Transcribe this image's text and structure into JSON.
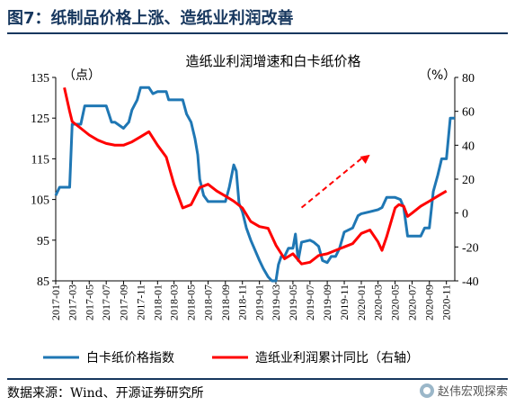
{
  "figure": {
    "title": "图7：纸制品价格上涨、造纸业利润改善",
    "source": "数据来源：Wind、开源证券研究所",
    "watermark": "赵伟宏观探索"
  },
  "chart_data": {
    "type": "line",
    "title": "造纸业利润增速和白卡纸价格",
    "y_left_label": "（点）",
    "y_right_label": "（%）",
    "y_left_range": [
      85,
      135
    ],
    "y_right_range": [
      -40,
      80
    ],
    "y_left_ticks": [
      "135",
      "125",
      "115",
      "105",
      "95",
      "85"
    ],
    "y_right_ticks": [
      "80",
      "60",
      "40",
      "20",
      "0",
      "-20",
      "-40"
    ],
    "x_range": [
      "2017-01",
      "2020-12"
    ],
    "x_ticks": [
      "2017-01",
      "2017-03",
      "2017-05",
      "2017-07",
      "2017-09",
      "2017-11",
      "2018-01",
      "2018-03",
      "2018-05",
      "2018-07",
      "2018-09",
      "2018-11",
      "2019-01",
      "2019-03",
      "2019-05",
      "2019-07",
      "2019-09",
      "2019-11",
      "2020-01",
      "2020-03",
      "2020-05",
      "2020-07",
      "2020-09",
      "2020-11"
    ],
    "series": [
      {
        "name": "白卡纸价格指数",
        "axis": "left",
        "color": "#1f77b4",
        "points": [
          [
            "2017-01",
            106
          ],
          [
            "2017-01-15",
            108
          ],
          [
            "2017-02",
            108
          ],
          [
            "2017-02-20",
            108
          ],
          [
            "2017-03",
            123.5
          ],
          [
            "2017-04",
            123.5
          ],
          [
            "2017-04-15",
            128
          ],
          [
            "2017-05",
            128
          ],
          [
            "2017-06",
            128
          ],
          [
            "2017-07",
            128
          ],
          [
            "2017-07-20",
            124
          ],
          [
            "2017-08",
            124
          ],
          [
            "2017-09",
            122.5
          ],
          [
            "2017-09-20",
            124
          ],
          [
            "2017-10",
            127
          ],
          [
            "2017-10-20",
            129.5
          ],
          [
            "2017-11",
            132.5
          ],
          [
            "2017-12",
            132.5
          ],
          [
            "2017-12-15",
            131
          ],
          [
            "2018-01",
            131.5
          ],
          [
            "2018-02",
            131.5
          ],
          [
            "2018-02-10",
            129.5
          ],
          [
            "2018-03",
            129.5
          ],
          [
            "2018-04",
            129.5
          ],
          [
            "2018-04-15",
            126
          ],
          [
            "2018-05",
            124
          ],
          [
            "2018-05-15",
            120
          ],
          [
            "2018-05-25",
            116
          ],
          [
            "2018-06",
            110
          ],
          [
            "2018-06-15",
            106
          ],
          [
            "2018-07",
            104.5
          ],
          [
            "2018-08",
            104.5
          ],
          [
            "2018-09",
            104.5
          ],
          [
            "2018-09-15",
            108
          ],
          [
            "2018-10",
            113.5
          ],
          [
            "2018-10-10",
            112
          ],
          [
            "2018-10-20",
            104
          ],
          [
            "2018-11",
            102
          ],
          [
            "2018-11-15",
            98
          ],
          [
            "2018-12",
            95
          ],
          [
            "2019-01",
            90
          ],
          [
            "2019-01-15",
            88
          ],
          [
            "2019-02",
            86
          ],
          [
            "2019-02-15",
            85
          ],
          [
            "2019-03",
            85
          ],
          [
            "2019-03-10",
            89
          ],
          [
            "2019-03-20",
            91
          ],
          [
            "2019-04",
            91
          ],
          [
            "2019-04-15",
            93
          ],
          [
            "2019-05",
            93
          ],
          [
            "2019-05-10",
            96.5
          ],
          [
            "2019-05-20",
            90
          ],
          [
            "2019-06",
            94.5
          ],
          [
            "2019-07",
            95
          ],
          [
            "2019-07-15",
            94.5
          ],
          [
            "2019-08",
            93.5
          ],
          [
            "2019-08-15",
            90
          ],
          [
            "2019-09",
            89.5
          ],
          [
            "2019-09-15",
            91
          ],
          [
            "2019-10",
            91
          ],
          [
            "2019-10-15",
            93
          ],
          [
            "2019-11",
            97
          ],
          [
            "2019-12",
            98
          ],
          [
            "2019-12-20",
            101
          ],
          [
            "2020-01",
            101.5
          ],
          [
            "2020-02",
            102
          ],
          [
            "2020-03",
            102.5
          ],
          [
            "2020-03-15",
            103
          ],
          [
            "2020-04",
            105.5
          ],
          [
            "2020-05",
            105.5
          ],
          [
            "2020-05-20",
            105
          ],
          [
            "2020-06",
            103
          ],
          [
            "2020-06-15",
            96
          ],
          [
            "2020-07",
            96
          ],
          [
            "2020-08",
            96
          ],
          [
            "2020-08-15",
            98
          ],
          [
            "2020-09",
            98
          ],
          [
            "2020-09-15",
            107
          ],
          [
            "2020-10",
            111
          ],
          [
            "2020-10-15",
            115
          ],
          [
            "2020-11",
            115
          ],
          [
            "2020-11-15",
            125
          ],
          [
            "2020-12",
            125
          ]
        ]
      },
      {
        "name": "造纸业利润累计同比（右轴）",
        "axis": "right",
        "color": "#ff0000",
        "points": [
          [
            "2017-02",
            74
          ],
          [
            "2017-02-20",
            60
          ],
          [
            "2017-03",
            54
          ],
          [
            "2017-04",
            50
          ],
          [
            "2017-05",
            46
          ],
          [
            "2017-06",
            43
          ],
          [
            "2017-07",
            41
          ],
          [
            "2017-08",
            40
          ],
          [
            "2017-09",
            40
          ],
          [
            "2017-10",
            42
          ],
          [
            "2017-11",
            45
          ],
          [
            "2017-12",
            48
          ],
          [
            "2018-01",
            40
          ],
          [
            "2018-02",
            33
          ],
          [
            "2018-03",
            17
          ],
          [
            "2018-04",
            3
          ],
          [
            "2018-05",
            5
          ],
          [
            "2018-06",
            15
          ],
          [
            "2018-07",
            17
          ],
          [
            "2018-08",
            13
          ],
          [
            "2018-09",
            10
          ],
          [
            "2018-10",
            7
          ],
          [
            "2018-11",
            3
          ],
          [
            "2018-12",
            -5
          ],
          [
            "2019-01",
            -8
          ],
          [
            "2019-02",
            -9
          ],
          [
            "2019-03",
            -19
          ],
          [
            "2019-04",
            -27
          ],
          [
            "2019-05",
            -24
          ],
          [
            "2019-06",
            -30
          ],
          [
            "2019-07",
            -29
          ],
          [
            "2019-08",
            -25
          ],
          [
            "2019-09",
            -24
          ],
          [
            "2019-10",
            -22
          ],
          [
            "2019-11",
            -20
          ],
          [
            "2019-12",
            -18
          ],
          [
            "2020-01",
            -12
          ],
          [
            "2020-02",
            -10
          ],
          [
            "2020-03",
            -17
          ],
          [
            "2020-03-15",
            -22
          ],
          [
            "2020-04",
            -14
          ],
          [
            "2020-05",
            3
          ],
          [
            "2020-05-15",
            5
          ],
          [
            "2020-06",
            4
          ],
          [
            "2020-06-15",
            -2
          ],
          [
            "2020-07",
            0
          ],
          [
            "2020-08",
            4
          ],
          [
            "2020-09",
            7
          ],
          [
            "2020-10",
            10
          ],
          [
            "2020-11",
            13
          ]
        ]
      }
    ],
    "trend_arrow": {
      "style": "dashed",
      "color": "#ff0000",
      "from": [
        "2019-06",
        103
      ],
      "to": [
        "2020-02",
        116
      ],
      "axis": "left"
    },
    "legend_position": "bottom",
    "grid": false
  }
}
